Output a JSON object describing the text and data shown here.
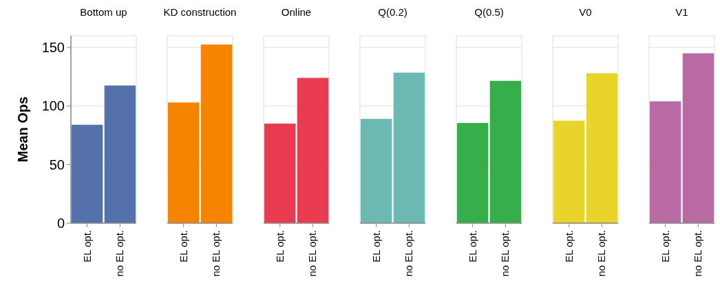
{
  "chart_data": [
    {
      "type": "bar",
      "title": "Bottom up",
      "ylabel": "Mean Ops",
      "categories": [
        "EL opt.",
        "no EL opt."
      ],
      "values": [
        84,
        117.5
      ],
      "color": "#5471aa",
      "ylim": [
        0,
        160
      ],
      "yticks": [
        0,
        50,
        100,
        150
      ],
      "grid": "y"
    },
    {
      "type": "bar",
      "title": "KD construction",
      "categories": [
        "EL opt.",
        "no EL opt."
      ],
      "values": [
        103,
        152.5
      ],
      "color": "#f78400",
      "ylim": [
        0,
        160
      ],
      "yticks": [
        0,
        50,
        100,
        150
      ],
      "grid": "y",
      "tick_labels": "x"
    },
    {
      "type": "bar",
      "title": "Online",
      "categories": [
        "EL opt.",
        "no EL opt."
      ],
      "values": [
        85,
        124
      ],
      "color": "#ea3c50",
      "ylim": [
        0,
        160
      ],
      "yticks": [
        0,
        50,
        100,
        150
      ],
      "grid": "y",
      "tick_labels": "x"
    },
    {
      "type": "bar",
      "title": "Q(0.2)",
      "categories": [
        "EL opt.",
        "no EL opt."
      ],
      "values": [
        89,
        128.5
      ],
      "color": "#6bb9b1",
      "ylim": [
        0,
        160
      ],
      "yticks": [
        0,
        50,
        100,
        150
      ],
      "grid": "y",
      "tick_labels": "x"
    },
    {
      "type": "bar",
      "title": "Q(0.5)",
      "categories": [
        "EL opt.",
        "no EL opt."
      ],
      "values": [
        85.5,
        121.5
      ],
      "color": "#37ae4b",
      "ylim": [
        0,
        160
      ],
      "yticks": [
        0,
        50,
        100,
        150
      ],
      "grid": "y",
      "tick_labels": "x"
    },
    {
      "type": "bar",
      "title": "V0",
      "categories": [
        "EL opt.",
        "no EL opt."
      ],
      "values": [
        87.5,
        128
      ],
      "color": "#e8d42b",
      "ylim": [
        0,
        160
      ],
      "yticks": [
        0,
        50,
        100,
        150
      ],
      "grid": "y",
      "tick_labels": "x"
    },
    {
      "type": "bar",
      "title": "V1",
      "categories": [
        "EL opt.",
        "no EL opt."
      ],
      "values": [
        104,
        145
      ],
      "color": "#b86aa2",
      "ylim": [
        0,
        160
      ],
      "yticks": [
        0,
        50,
        100,
        150
      ],
      "grid": "y",
      "tick_labels": "x"
    }
  ]
}
